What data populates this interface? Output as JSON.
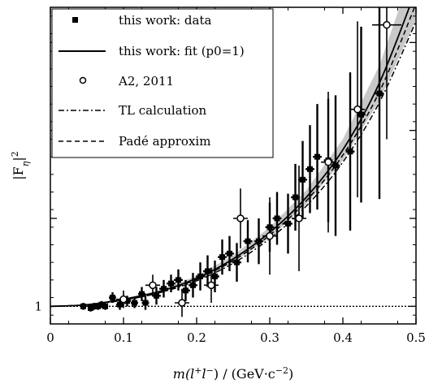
{
  "chart_data": {
    "type": "scatter",
    "title": "",
    "xlabel": {
      "prefix": "m(l",
      "sup1": "+",
      "mid": "l",
      "sup2": "−",
      "suffix": ") / (GeV·c",
      "sup3": "−2",
      "end": ")"
    },
    "ylabel": {
      "base": "|F",
      "sub": "η",
      "close": "|",
      "sup": "2"
    },
    "xlim": [
      0,
      0.5
    ],
    "ylim": [
      0.9,
      2.7
    ],
    "x_ticks": [
      {
        "value": 0,
        "label": "0"
      },
      {
        "value": 0.1,
        "label": "0.1"
      },
      {
        "value": 0.2,
        "label": "0.2"
      },
      {
        "value": 0.3,
        "label": "0.3"
      },
      {
        "value": 0.4,
        "label": "0.4"
      },
      {
        "value": 0.5,
        "label": "0.5"
      }
    ],
    "y_ticks": [
      {
        "value": 1,
        "label": "1"
      },
      {
        "value": 1.5,
        "label": ""
      },
      {
        "value": 2,
        "label": ""
      },
      {
        "value": 2.5,
        "label": ""
      }
    ],
    "legend": {
      "placement": "top-left",
      "entries": [
        {
          "label": "this work: data",
          "marker": "filled-square"
        },
        {
          "label": "this work: fit (p0=1)",
          "marker": "solid-line"
        },
        {
          "label": "A2, 2011",
          "marker": "open-circle"
        },
        {
          "label": "TL calculation",
          "marker": "dash-dot-line"
        },
        {
          "label": "Padé approxim",
          "marker": "dashed-line"
        }
      ]
    },
    "series": [
      {
        "name": "this work: data",
        "marker": "filled-square",
        "points": [
          {
            "x": 0.045,
            "y": 1.0,
            "xerr": 0.004,
            "yerr": 0.02
          },
          {
            "x": 0.055,
            "y": 0.99,
            "xerr": 0.004,
            "yerr": 0.02
          },
          {
            "x": 0.06,
            "y": 1.0,
            "xerr": 0.004,
            "yerr": 0.02
          },
          {
            "x": 0.065,
            "y": 1.0,
            "xerr": 0.004,
            "yerr": 0.02
          },
          {
            "x": 0.07,
            "y": 1.01,
            "xerr": 0.004,
            "yerr": 0.02
          },
          {
            "x": 0.075,
            "y": 1.0,
            "xerr": 0.004,
            "yerr": 0.02
          },
          {
            "x": 0.085,
            "y": 1.05,
            "xerr": 0.005,
            "yerr": 0.03
          },
          {
            "x": 0.095,
            "y": 1.01,
            "xerr": 0.005,
            "yerr": 0.03
          },
          {
            "x": 0.105,
            "y": 1.03,
            "xerr": 0.005,
            "yerr": 0.03
          },
          {
            "x": 0.115,
            "y": 1.02,
            "xerr": 0.005,
            "yerr": 0.03
          },
          {
            "x": 0.125,
            "y": 1.07,
            "xerr": 0.005,
            "yerr": 0.04
          },
          {
            "x": 0.13,
            "y": 1.02,
            "xerr": 0.005,
            "yerr": 0.04
          },
          {
            "x": 0.145,
            "y": 1.06,
            "xerr": 0.006,
            "yerr": 0.05
          },
          {
            "x": 0.155,
            "y": 1.1,
            "xerr": 0.006,
            "yerr": 0.05
          },
          {
            "x": 0.165,
            "y": 1.13,
            "xerr": 0.006,
            "yerr": 0.05
          },
          {
            "x": 0.175,
            "y": 1.15,
            "xerr": 0.006,
            "yerr": 0.06
          },
          {
            "x": 0.185,
            "y": 1.09,
            "xerr": 0.006,
            "yerr": 0.06
          },
          {
            "x": 0.195,
            "y": 1.12,
            "xerr": 0.006,
            "yerr": 0.07
          },
          {
            "x": 0.205,
            "y": 1.17,
            "xerr": 0.006,
            "yerr": 0.08
          },
          {
            "x": 0.215,
            "y": 1.2,
            "xerr": 0.006,
            "yerr": 0.09
          },
          {
            "x": 0.225,
            "y": 1.17,
            "xerr": 0.006,
            "yerr": 0.09
          },
          {
            "x": 0.235,
            "y": 1.28,
            "xerr": 0.006,
            "yerr": 0.1
          },
          {
            "x": 0.245,
            "y": 1.3,
            "xerr": 0.006,
            "yerr": 0.1
          },
          {
            "x": 0.255,
            "y": 1.25,
            "xerr": 0.006,
            "yerr": 0.11
          },
          {
            "x": 0.27,
            "y": 1.37,
            "xerr": 0.006,
            "yerr": 0.12
          },
          {
            "x": 0.285,
            "y": 1.37,
            "xerr": 0.006,
            "yerr": 0.13
          },
          {
            "x": 0.3,
            "y": 1.45,
            "xerr": 0.006,
            "yerr": 0.14
          },
          {
            "x": 0.31,
            "y": 1.5,
            "xerr": 0.006,
            "yerr": 0.15
          },
          {
            "x": 0.325,
            "y": 1.47,
            "xerr": 0.006,
            "yerr": 0.17
          },
          {
            "x": 0.335,
            "y": 1.62,
            "xerr": 0.006,
            "yerr": 0.19
          },
          {
            "x": 0.345,
            "y": 1.72,
            "xerr": 0.006,
            "yerr": 0.22
          },
          {
            "x": 0.355,
            "y": 1.78,
            "xerr": 0.006,
            "yerr": 0.25
          },
          {
            "x": 0.365,
            "y": 1.85,
            "xerr": 0.006,
            "yerr": 0.3
          },
          {
            "x": 0.38,
            "y": 1.83,
            "xerr": 0.006,
            "yerr": 0.35
          },
          {
            "x": 0.39,
            "y": 1.8,
            "xerr": 0.006,
            "yerr": 0.4
          },
          {
            "x": 0.41,
            "y": 1.88,
            "xerr": 0.006,
            "yerr": 0.45
          },
          {
            "x": 0.425,
            "y": 2.09,
            "xerr": 0.006,
            "yerr": 0.5
          },
          {
            "x": 0.45,
            "y": 2.21,
            "xerr": 0.006,
            "yerr": 0.6
          }
        ]
      },
      {
        "name": "A2, 2011",
        "marker": "open-circle",
        "points": [
          {
            "x": 0.1,
            "y": 1.04,
            "xerr": 0.01,
            "yerr": 0.05
          },
          {
            "x": 0.14,
            "y": 1.12,
            "xerr": 0.01,
            "yerr": 0.06
          },
          {
            "x": 0.18,
            "y": 1.02,
            "xerr": 0.01,
            "yerr": 0.08
          },
          {
            "x": 0.22,
            "y": 1.12,
            "xerr": 0.01,
            "yerr": 0.1
          },
          {
            "x": 0.26,
            "y": 1.5,
            "xerr": 0.01,
            "yerr": 0.17
          },
          {
            "x": 0.3,
            "y": 1.4,
            "xerr": 0.01,
            "yerr": 0.22
          },
          {
            "x": 0.34,
            "y": 1.5,
            "xerr": 0.01,
            "yerr": 0.3
          },
          {
            "x": 0.38,
            "y": 1.82,
            "xerr": 0.01,
            "yerr": 0.4
          },
          {
            "x": 0.42,
            "y": 2.12,
            "xerr": 0.01,
            "yerr": 0.5
          },
          {
            "x": 0.46,
            "y": 2.6,
            "xerr": 0.02,
            "yerr": 0.65
          }
        ]
      }
    ],
    "curves": [
      {
        "name": "this work: fit (p0=1)",
        "style": "solid",
        "points": [
          [
            0,
            1.0
          ],
          [
            0.05,
            1.009
          ],
          [
            0.1,
            1.04
          ],
          [
            0.15,
            1.085
          ],
          [
            0.2,
            1.16
          ],
          [
            0.25,
            1.27
          ],
          [
            0.3,
            1.42
          ],
          [
            0.35,
            1.62
          ],
          [
            0.4,
            1.89
          ],
          [
            0.45,
            2.27
          ],
          [
            0.5,
            2.8
          ]
        ],
        "band": {
          "lower": [
            [
              0,
              1.0
            ],
            [
              0.05,
              1.008
            ],
            [
              0.1,
              1.035
            ],
            [
              0.15,
              1.078
            ],
            [
              0.2,
              1.147
            ],
            [
              0.25,
              1.25
            ],
            [
              0.3,
              1.39
            ],
            [
              0.35,
              1.58
            ],
            [
              0.4,
              1.83
            ],
            [
              0.45,
              2.17
            ],
            [
              0.5,
              2.63
            ]
          ],
          "upper": [
            [
              0,
              1.0
            ],
            [
              0.05,
              1.01
            ],
            [
              0.1,
              1.045
            ],
            [
              0.15,
              1.092
            ],
            [
              0.2,
              1.173
            ],
            [
              0.25,
              1.29
            ],
            [
              0.3,
              1.45
            ],
            [
              0.35,
              1.66
            ],
            [
              0.4,
              1.95
            ],
            [
              0.45,
              2.37
            ],
            [
              0.5,
              2.97
            ]
          ]
        }
      },
      {
        "name": "TL calculation",
        "style": "dash-dot",
        "points": [
          [
            0,
            1.0
          ],
          [
            0.05,
            1.008
          ],
          [
            0.1,
            1.035
          ],
          [
            0.15,
            1.078
          ],
          [
            0.2,
            1.145
          ],
          [
            0.25,
            1.245
          ],
          [
            0.3,
            1.385
          ],
          [
            0.35,
            1.57
          ],
          [
            0.4,
            1.82
          ],
          [
            0.45,
            2.16
          ],
          [
            0.5,
            2.62
          ]
        ]
      },
      {
        "name": "Padé approxim",
        "style": "dashed",
        "points": [
          [
            0,
            1.0
          ],
          [
            0.05,
            1.009
          ],
          [
            0.1,
            1.038
          ],
          [
            0.15,
            1.082
          ],
          [
            0.2,
            1.153
          ],
          [
            0.25,
            1.26
          ],
          [
            0.3,
            1.405
          ],
          [
            0.35,
            1.6
          ],
          [
            0.4,
            1.86
          ],
          [
            0.45,
            2.22
          ],
          [
            0.5,
            2.72
          ]
        ]
      }
    ],
    "reference_line": {
      "y": 1,
      "style": "dotted"
    },
    "colors": {
      "data": "#000000",
      "band": "#c8c8c8"
    }
  }
}
